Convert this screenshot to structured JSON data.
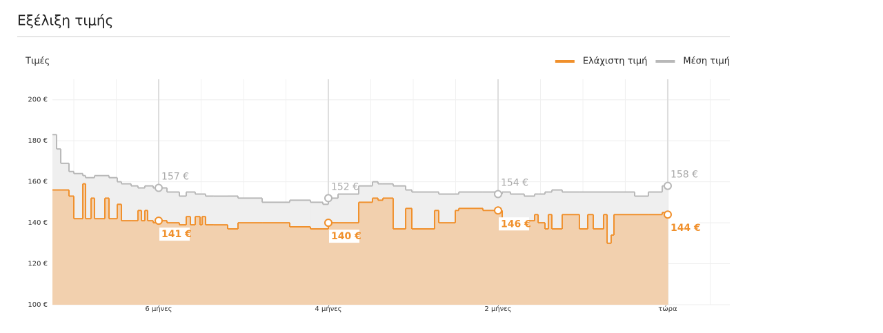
{
  "chart_data": {
    "type": "line",
    "step": true,
    "title": "Εξέλιξη τιμής",
    "y_label": "Τιμές",
    "legend": "top-right",
    "grid": true,
    "x": [
      -7.252,
      -7.203,
      -7.154,
      -7.057,
      -7.0,
      -6.894,
      -6.862,
      -6.797,
      -6.756,
      -6.634,
      -6.585,
      -6.488,
      -6.439,
      -6.325,
      -6.244,
      -6.203,
      -6.163,
      -6.13,
      -6.065,
      -6,
      -5.902,
      -5.756,
      -5.675,
      -5.626,
      -5.569,
      -5.512,
      -5.488,
      -5.447,
      -5.35,
      -5.187,
      -5.065,
      -4.78,
      -4.455,
      -4.211,
      -4.065,
      -4,
      -3.886,
      -3.642,
      -3.48,
      -3.415,
      -3.358,
      -3.236,
      -3.089,
      -3.016,
      -2.748,
      -2.699,
      -2.504,
      -2.463,
      -2.179,
      -2,
      -1.951,
      -1.854,
      -1.691,
      -1.569,
      -1.528,
      -1.447,
      -1.407,
      -1.366,
      -1.244,
      -1.041,
      -0.943,
      -0.878,
      -0.756,
      -0.715,
      -0.667,
      -0.634,
      -0.39,
      -0.228,
      -0.065,
      0
    ],
    "xlim": [
      -7.252,
      0.732
    ],
    "xticks": [
      {
        "value": -6,
        "label": "6 μήνες"
      },
      {
        "value": -4,
        "label": "4 μήνες"
      },
      {
        "value": -2,
        "label": "2 μήνες"
      },
      {
        "value": 0,
        "label": "τώρα"
      }
    ],
    "ylim": [
      100,
      210
    ],
    "yticks": [
      {
        "value": 100,
        "label": "100 €"
      },
      {
        "value": 120,
        "label": "120 €"
      },
      {
        "value": 140,
        "label": "140 €"
      },
      {
        "value": 160,
        "label": "160 €"
      },
      {
        "value": 180,
        "label": "180 €"
      },
      {
        "value": 200,
        "label": "200 €"
      }
    ],
    "series": [
      {
        "name": "Ελάχιστη τιμή",
        "color": "#f0902c",
        "fill": "#f2d0ae",
        "values": [
          156,
          156,
          156,
          153,
          142,
          159,
          142,
          152,
          142,
          152,
          142,
          149,
          141,
          141,
          146,
          141,
          146,
          141,
          140,
          141,
          140,
          139,
          143,
          139,
          143,
          139,
          143,
          139,
          139,
          137,
          140,
          140,
          138,
          137,
          137,
          140,
          140,
          150,
          152,
          151,
          152,
          137,
          147,
          137,
          146,
          140,
          146,
          147,
          146,
          146,
          142,
          137,
          141,
          144,
          140,
          137,
          144,
          137,
          144,
          137,
          144,
          137,
          144,
          130,
          134,
          144,
          144,
          144,
          145,
          144
        ],
        "value_labels": [
          null,
          null,
          null,
          null,
          null,
          null,
          null,
          null,
          null,
          null,
          null,
          null,
          null,
          null,
          null,
          null,
          null,
          null,
          null,
          "141 €",
          null,
          null,
          null,
          null,
          null,
          null,
          null,
          null,
          null,
          null,
          null,
          null,
          null,
          null,
          null,
          "140 €",
          null,
          null,
          null,
          null,
          null,
          null,
          null,
          null,
          null,
          null,
          null,
          null,
          null,
          "146 €",
          null,
          null,
          null,
          null,
          null,
          null,
          null,
          null,
          null,
          null,
          null,
          null,
          null,
          null,
          null,
          null,
          null,
          null,
          null,
          "144 €"
        ]
      },
      {
        "name": "Μέση τιμή",
        "color": "#b8b8b8",
        "fill": "#efefef",
        "values": [
          183,
          176,
          169,
          165,
          164,
          163,
          162,
          162,
          163,
          163,
          162,
          160,
          159,
          158,
          157,
          157,
          158,
          158,
          157,
          157,
          155,
          153,
          155,
          155,
          154,
          154,
          154,
          153,
          153,
          153,
          152,
          150,
          151,
          150,
          149,
          152,
          154,
          158,
          160,
          159,
          159,
          158,
          156,
          155,
          155,
          154,
          154,
          155,
          155,
          154,
          155,
          154,
          153,
          154,
          154,
          155,
          155,
          156,
          155,
          155,
          155,
          155,
          155,
          155,
          155,
          155,
          153,
          155,
          158,
          158
        ],
        "value_labels": [
          null,
          null,
          null,
          null,
          null,
          null,
          null,
          null,
          null,
          null,
          null,
          null,
          null,
          null,
          null,
          null,
          null,
          null,
          null,
          "157 €",
          null,
          null,
          null,
          null,
          null,
          null,
          null,
          null,
          null,
          null,
          null,
          null,
          null,
          null,
          null,
          "152 €",
          null,
          null,
          null,
          null,
          null,
          null,
          null,
          null,
          null,
          null,
          null,
          null,
          null,
          "154 €",
          null,
          null,
          null,
          null,
          null,
          null,
          null,
          null,
          null,
          null,
          null,
          null,
          null,
          null,
          null,
          null,
          null,
          null,
          null,
          "158 €"
        ]
      }
    ]
  }
}
